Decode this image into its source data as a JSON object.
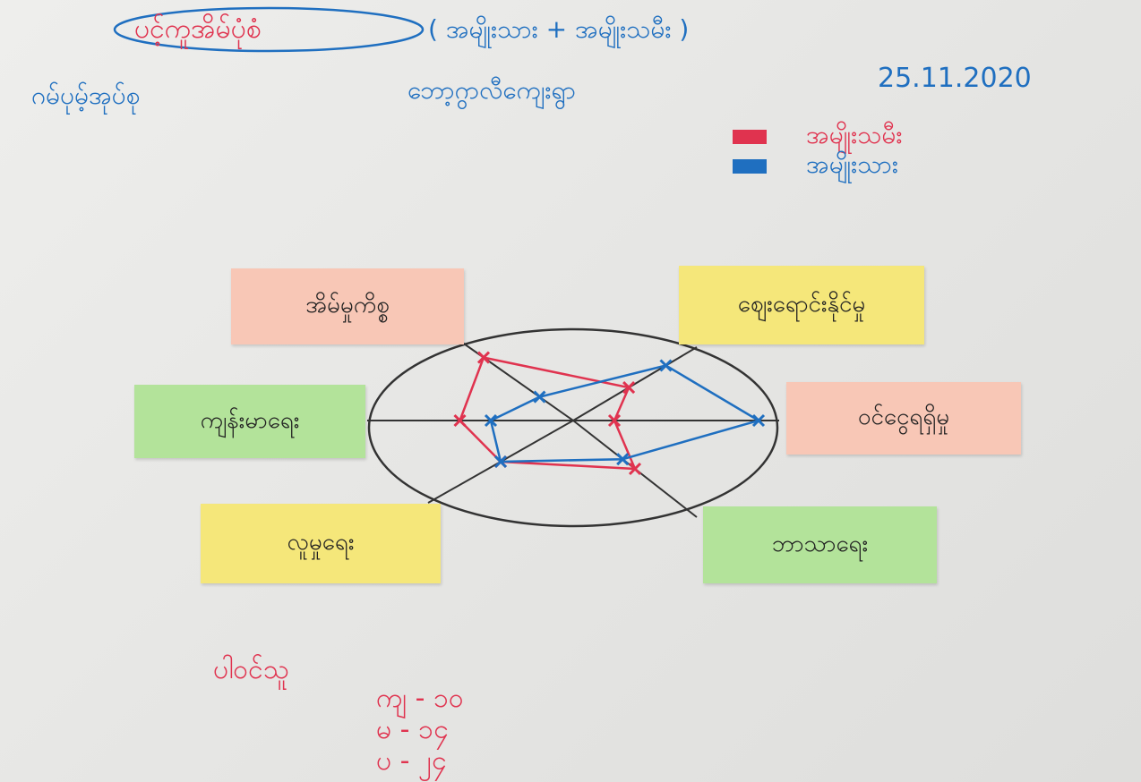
{
  "chart_data": {
    "type": "radar",
    "title": "ပင့်ကူအိမ်ပုံစံ",
    "subtitle": "( အမျိုးသား + အမျိုးသမီး )",
    "group": "ဂမ်ပုမ့်အုပ်စု",
    "village": "ဘော့ဂွာလီကျေးရွာ",
    "date": "25.11.2020",
    "categories": [
      "အိမ်မှုကိစ္စ",
      "ဈေးရောင်းနိုင်မှု",
      "ဝင်ငွေရရှိမှု",
      "ဘာသာရေး",
      "လူမှုရေး",
      "ကျန်းမာရေး"
    ],
    "series": [
      {
        "name": "အမျိုးသမီး",
        "color": "#e0334f",
        "values": [
          8,
          4.5,
          2,
          5,
          5,
          5.5
        ]
      },
      {
        "name": "အမျိုးသား",
        "color": "#1f6fc0",
        "values": [
          3,
          7.5,
          9,
          4,
          5,
          4
        ]
      }
    ],
    "rlim": [
      0,
      10
    ],
    "participants": {
      "label": "ပါဝင်သူ",
      "rows": [
        "ကျ - ၁၀",
        "မ - ၁၄",
        "ပ - ၂၄"
      ]
    }
  }
}
